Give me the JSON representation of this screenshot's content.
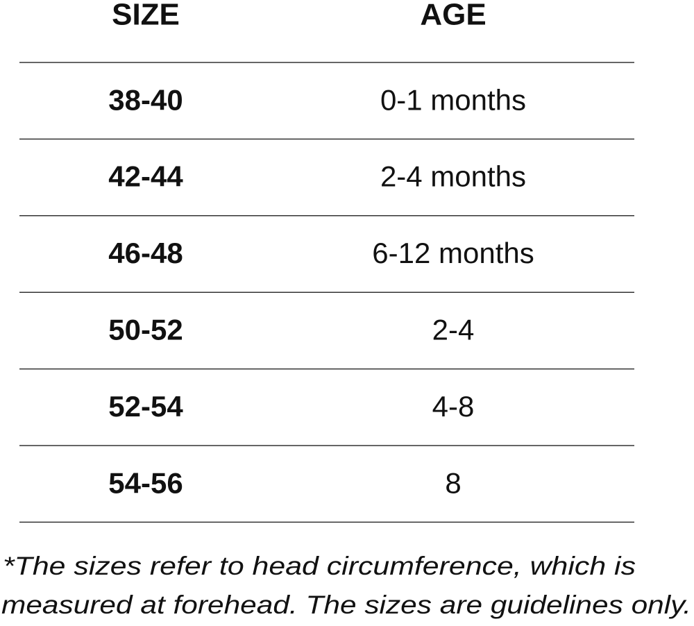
{
  "table": {
    "header": [
      "SIZE",
      "AGE"
    ],
    "rows": [
      [
        "38-40",
        "0-1 months"
      ],
      [
        "42-44",
        "2-4 months"
      ],
      [
        "46-48",
        "6-12 months"
      ],
      [
        "50-52",
        "2-4"
      ],
      [
        "52-54",
        "4-8"
      ],
      [
        "54-56",
        "8"
      ]
    ]
  },
  "footnote": {
    "lines": [
      "*The sizes refer to head circumference, which is",
      "measured at forehead. The sizes are guidelines only."
    ]
  }
}
